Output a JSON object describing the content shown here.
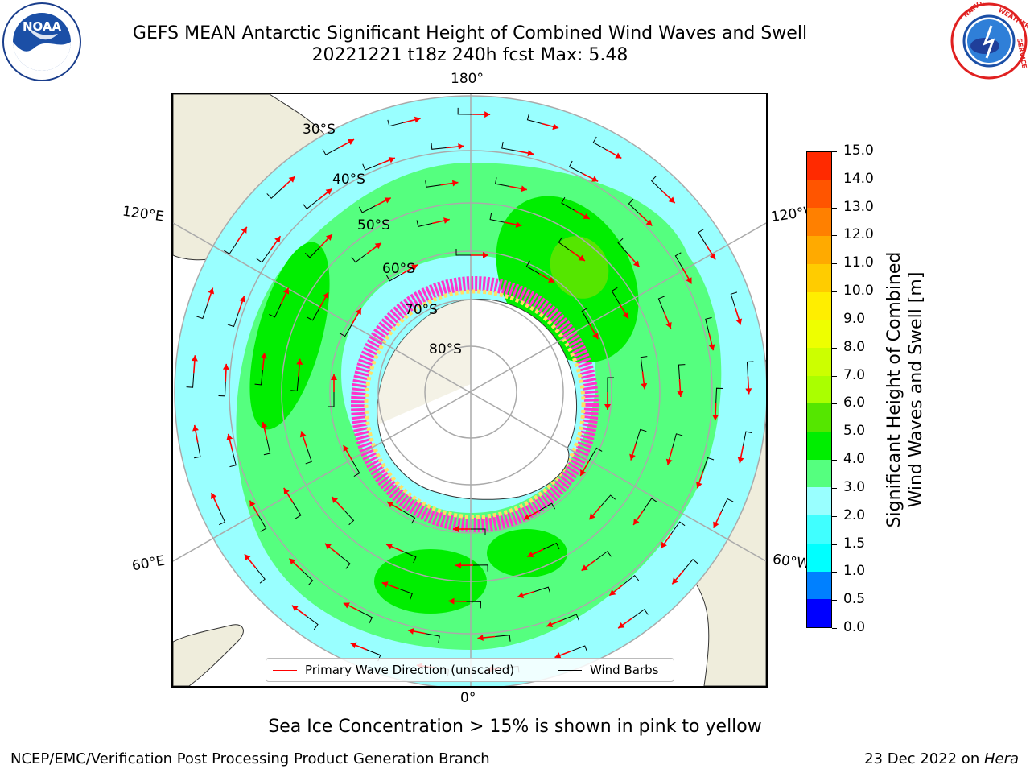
{
  "header": {
    "title_line1": "GEFS MEAN Antarctic Significant Height of Combined Wind Waves and Swell",
    "title_line2": "20221221 t18z 240h fcst   Max: 5.48"
  },
  "logos": {
    "noaa": {
      "text": "NOAA",
      "ring_text": "NATIONAL OCEANIC AND ATMOSPHERIC ADMINISTRATION · U.S. DEPARTMENT OF COMMERCE"
    },
    "nws": {
      "ring_text": "NATIONAL WEATHER SERVICE"
    }
  },
  "map": {
    "longitude_labels": {
      "top": "180°",
      "bottom": "0°",
      "left_upper": "120°E",
      "left_lower": "60°E",
      "right_upper": "120°W",
      "right_lower": "60°W"
    },
    "latitude_labels": [
      "30°S",
      "40°S",
      "50°S",
      "60°S",
      "70°S",
      "80°S"
    ],
    "colors": {
      "land": "#efeddc",
      "ocean_fill": "#99ffff",
      "ice_pink": "#ff33cc",
      "ice_yellow": "#ffe066",
      "arrow": "#ff0000",
      "barb": "#000000"
    }
  },
  "legend": {
    "primary_wave_label": "Primary Wave Direction (unscaled)",
    "wind_barb_label": "Wind Barbs",
    "primary_wave_color": "#ff0000",
    "wind_barb_color": "#000000"
  },
  "colorbar": {
    "label_line1": "Significant Height of Combined",
    "label_line2": "Wind Waves and Swell [m]",
    "ticks": [
      "0.0",
      "0.5",
      "1.0",
      "1.5",
      "2.0",
      "3.0",
      "4.0",
      "5.0",
      "6.0",
      "7.0",
      "8.0",
      "9.0",
      "10.0",
      "11.0",
      "12.0",
      "13.0",
      "14.0",
      "15.0"
    ],
    "colors": [
      "#0000ff",
      "#0080ff",
      "#00ffff",
      "#40ffff",
      "#99ffff",
      "#55ff7f",
      "#00ee00",
      "#55e600",
      "#aaff00",
      "#ccff00",
      "#eeff00",
      "#ffee00",
      "#ffcc00",
      "#ffaa00",
      "#ff8000",
      "#ff5500",
      "#ff2a00",
      "#ff0000"
    ]
  },
  "note": "Sea Ice Concentration > 15% is shown in pink to yellow",
  "footer": {
    "left": "NCEP/EMC/Verification Post Processing Product Generation Branch",
    "right_date": "23 Dec 2022 on ",
    "right_machine": "Hera"
  }
}
